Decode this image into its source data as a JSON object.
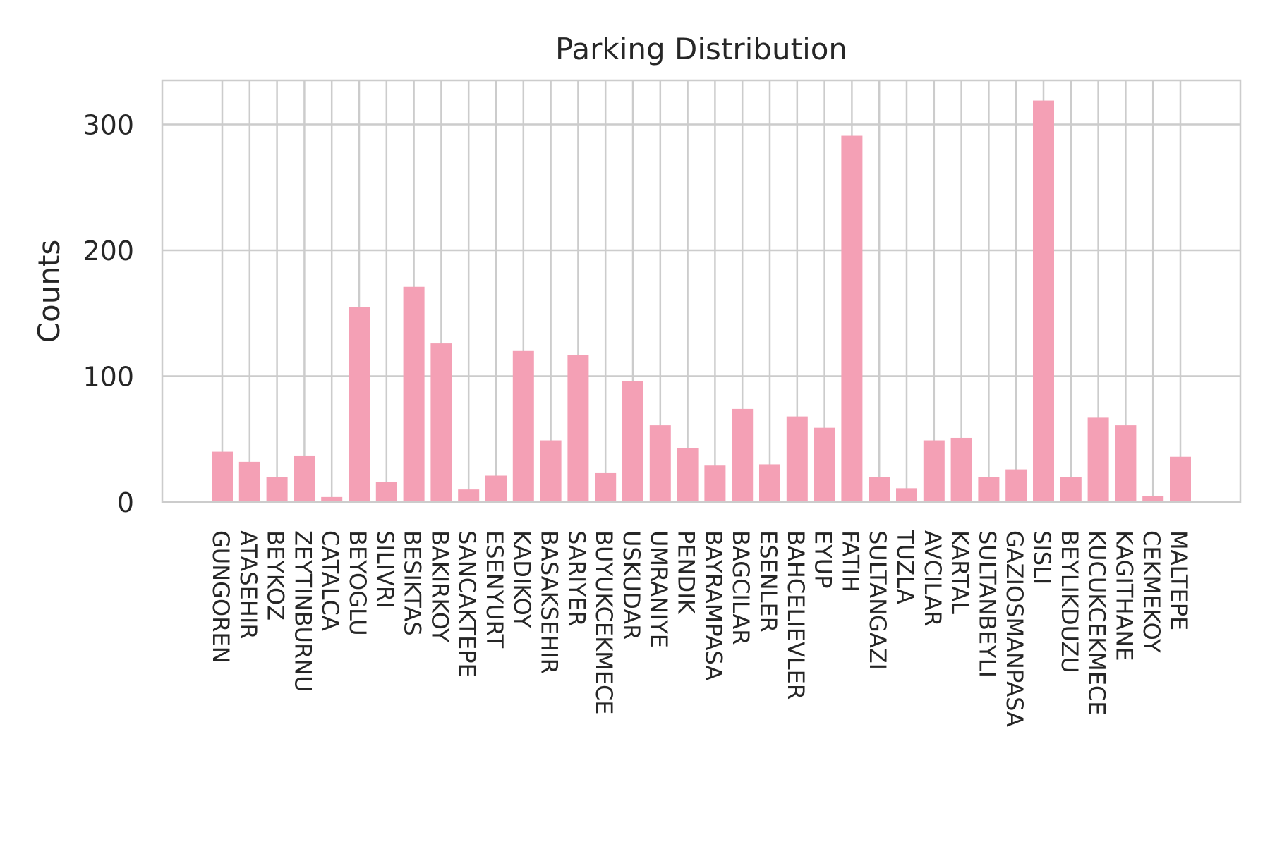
{
  "chart_data": {
    "type": "bar",
    "title": "Parking Distribution",
    "xlabel": "",
    "ylabel": "Counts",
    "ylim": [
      0,
      335
    ],
    "yticks": [
      0,
      100,
      200,
      300
    ],
    "grid": true,
    "bar_color": "#f4a0b5",
    "grid_color": "#cccccc",
    "categories": [
      "GUNGOREN",
      "ATASEHIR",
      "BEYKOZ",
      "ZEYTINBURNU",
      "CATALCA",
      "BEYOGLU",
      "SILIVRI",
      "BESIKTAS",
      "BAKIRKOY",
      "SANCAKTEPE",
      "ESENYURT",
      "KADIKOY",
      "BASAKSEHIR",
      "SARIYER",
      "BUYUKCEKMECE",
      "USKUDAR",
      "UMRANIYE",
      "PENDIK",
      "BAYRAMPASA",
      "BAGCILAR",
      "ESENLER",
      "BAHCELIEVLER",
      "EYUP",
      "FATIH",
      "SULTANGAZI",
      "TUZLA",
      "AVCILAR",
      "KARTAL",
      "SULTANBEYLI",
      "GAZIOSMANPASA",
      "SISLI",
      "BEYLIKDUZU",
      "KUCUKCEKMECE",
      "KAGITHANE",
      "CEKMEKOY",
      "MALTEPE"
    ],
    "values": [
      40,
      32,
      20,
      37,
      4,
      155,
      16,
      171,
      126,
      10,
      21,
      120,
      49,
      117,
      23,
      96,
      61,
      43,
      29,
      74,
      30,
      68,
      59,
      291,
      20,
      11,
      49,
      51,
      20,
      26,
      319,
      20,
      67,
      61,
      5,
      36
    ]
  }
}
